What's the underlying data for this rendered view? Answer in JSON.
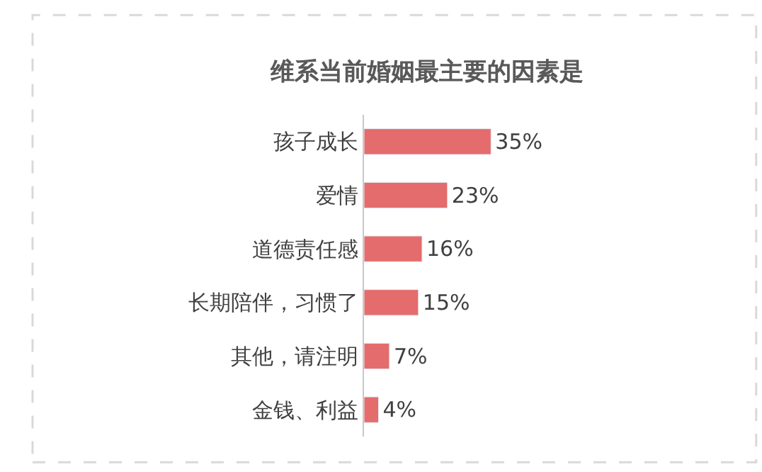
{
  "chart_data": {
    "type": "bar",
    "orientation": "horizontal",
    "title": "维系当前婚姻最主要的因素是",
    "categories": [
      "孩子成长",
      "爱情",
      "道德责任感",
      "长期陪伴，习惯了",
      "其他，请注明",
      "金钱、利益"
    ],
    "values": [
      35,
      23,
      16,
      15,
      7,
      4
    ],
    "value_labels": [
      "35%",
      "23%",
      "16%",
      "15%",
      "7%",
      "4%"
    ],
    "color": "#e46c6c"
  }
}
